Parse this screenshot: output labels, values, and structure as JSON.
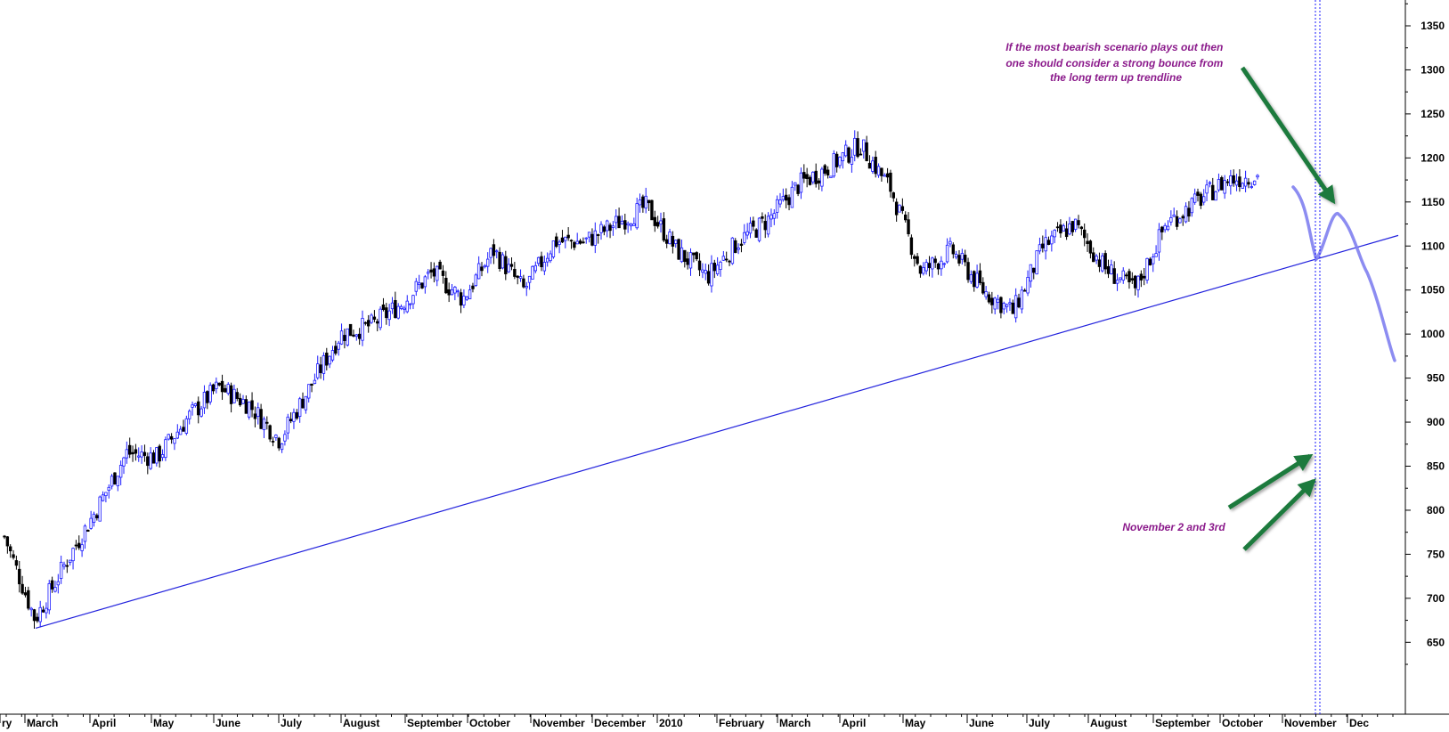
{
  "chart_data": {
    "type": "candlestick",
    "title": "",
    "xlabel": "",
    "ylabel": "",
    "ylim": [
      600,
      1380
    ],
    "y_ticks": [
      650,
      700,
      750,
      800,
      850,
      900,
      950,
      1000,
      1050,
      1100,
      1150,
      1200,
      1250,
      1300,
      1350
    ],
    "y_axis_side": "right",
    "grid": false,
    "x_labels": [
      "ry",
      "March",
      "April",
      "May",
      "June",
      "July",
      "August",
      "September",
      "October",
      "November",
      "December",
      "2010",
      "February",
      "March",
      "April",
      "May",
      "June",
      "July",
      "August",
      "September",
      "October",
      "November",
      "Dec"
    ],
    "series": [
      {
        "values": [
          {
            "x": "Feb 2009",
            "y": 770
          },
          {
            "x": "Mar 2009",
            "y": 676
          },
          {
            "x": "Mar 2009",
            "y": 740
          },
          {
            "x": "Apr 2009",
            "y": 800
          },
          {
            "x": "Apr 2009",
            "y": 865
          },
          {
            "x": "May 2009",
            "y": 860
          },
          {
            "x": "May 2009",
            "y": 905
          },
          {
            "x": "Jun 2009",
            "y": 940
          },
          {
            "x": "Jun 2009",
            "y": 920
          },
          {
            "x": "Jul 2009",
            "y": 880
          },
          {
            "x": "Jul 2009",
            "y": 940
          },
          {
            "x": "Aug 2009",
            "y": 1000
          },
          {
            "x": "Aug 2009",
            "y": 1010
          },
          {
            "x": "Sep 2009",
            "y": 1035
          },
          {
            "x": "Sep 2009",
            "y": 1070
          },
          {
            "x": "Oct 2009",
            "y": 1040
          },
          {
            "x": "Oct 2009",
            "y": 1095
          },
          {
            "x": "Nov 2009",
            "y": 1050
          },
          {
            "x": "Nov 2009",
            "y": 1105
          },
          {
            "x": "Dec 2009",
            "y": 1105
          },
          {
            "x": "Dec 2009",
            "y": 1125
          },
          {
            "x": "Jan 2010",
            "y": 1145
          },
          {
            "x": "Jan 2010",
            "y": 1095
          },
          {
            "x": "Feb 2010",
            "y": 1065
          },
          {
            "x": "Feb 2010",
            "y": 1105
          },
          {
            "x": "Mar 2010",
            "y": 1130
          },
          {
            "x": "Mar 2010",
            "y": 1170
          },
          {
            "x": "Apr 2010",
            "y": 1190
          },
          {
            "x": "Apr 2010",
            "y": 1215
          },
          {
            "x": "May 2010",
            "y": 1165
          },
          {
            "x": "May 2010",
            "y": 1070
          },
          {
            "x": "Jun 2010",
            "y": 1095
          },
          {
            "x": "Jun 2010",
            "y": 1050
          },
          {
            "x": "Jul 2010",
            "y": 1025
          },
          {
            "x": "Jul 2010",
            "y": 1100
          },
          {
            "x": "Aug 2010",
            "y": 1125
          },
          {
            "x": "Aug 2010",
            "y": 1075
          },
          {
            "x": "Sep 2010",
            "y": 1050
          },
          {
            "x": "Sep 2010",
            "y": 1125
          },
          {
            "x": "Oct 2010",
            "y": 1150
          },
          {
            "x": "Oct 2010",
            "y": 1175
          },
          {
            "x": "Oct 2010",
            "y": 1180
          }
        ]
      }
    ],
    "trendline": {
      "from": {
        "x": "Mar 2009",
        "y": 666
      },
      "to": {
        "x": "Dec 2010",
        "y": 1112
      }
    },
    "projection": [
      {
        "x": "Oct 2010",
        "y": 1167
      },
      {
        "x": "Nov 2010",
        "y": 1085
      },
      {
        "x": "Nov 2010",
        "y": 1137
      },
      {
        "x": "Nov 2010",
        "y": 1070
      },
      {
        "x": "Dec 2010",
        "y": 970
      }
    ],
    "vertical_markers": [
      "Nov 2",
      "Nov 3"
    ],
    "annotations": [
      {
        "lines": [
          "If the most bearish scenario plays out then",
          "one should consider a strong bounce from",
          "the long term up trendline"
        ],
        "color": "#8b1a8b"
      },
      {
        "lines": [
          "November 2 and 3rd"
        ],
        "color": "#8b1a8b"
      }
    ],
    "colors": {
      "candle_up": "#1a1aff",
      "candle_down": "#000000",
      "trendline": "#2222dd",
      "projection": "#8080f0",
      "marker": "#1a1aff",
      "arrow": "#1e7a3c",
      "annotation": "#8b1a8b"
    }
  }
}
